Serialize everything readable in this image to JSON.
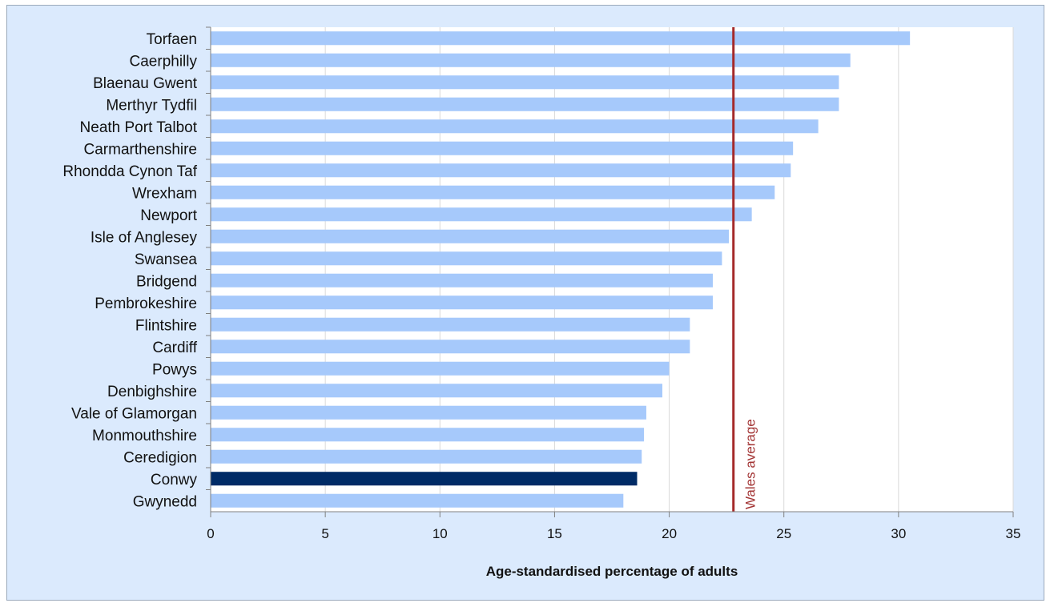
{
  "chart_data": {
    "type": "bar",
    "orientation": "horizontal",
    "title": "",
    "xlabel": "Age-standardised percentage of adults",
    "ylabel": "",
    "xlim": [
      0,
      35
    ],
    "xticks": [
      0,
      5,
      10,
      15,
      20,
      25,
      30,
      35
    ],
    "grid": true,
    "categories": [
      "Torfaen",
      "Caerphilly",
      "Blaenau Gwent",
      "Merthyr Tydfil",
      "Neath Port Talbot",
      "Carmarthenshire",
      "Rhondda Cynon Taf",
      "Wrexham",
      "Newport",
      "Isle of Anglesey",
      "Swansea",
      "Bridgend",
      "Pembrokeshire",
      "Flintshire",
      "Cardiff",
      "Powys",
      "Denbighshire",
      "Vale of Glamorgan",
      "Monmouthshire",
      "Ceredigion",
      "Conwy",
      "Gwynedd"
    ],
    "values": [
      30.5,
      27.9,
      27.4,
      27.4,
      26.5,
      25.4,
      25.3,
      24.6,
      23.6,
      22.6,
      22.3,
      21.9,
      21.9,
      20.9,
      20.9,
      20.0,
      19.7,
      19.0,
      18.9,
      18.8,
      18.6,
      18.0
    ],
    "highlight_category": "Conwy",
    "reference_line": {
      "label": "Wales average",
      "value": 22.8,
      "color": "#a52a2a"
    },
    "colors": {
      "bar": "#a6c9fb",
      "highlight": "#002b66",
      "background": "#dbeafd",
      "plot_background": "#ffffff",
      "grid": "#d9d9d9"
    }
  }
}
